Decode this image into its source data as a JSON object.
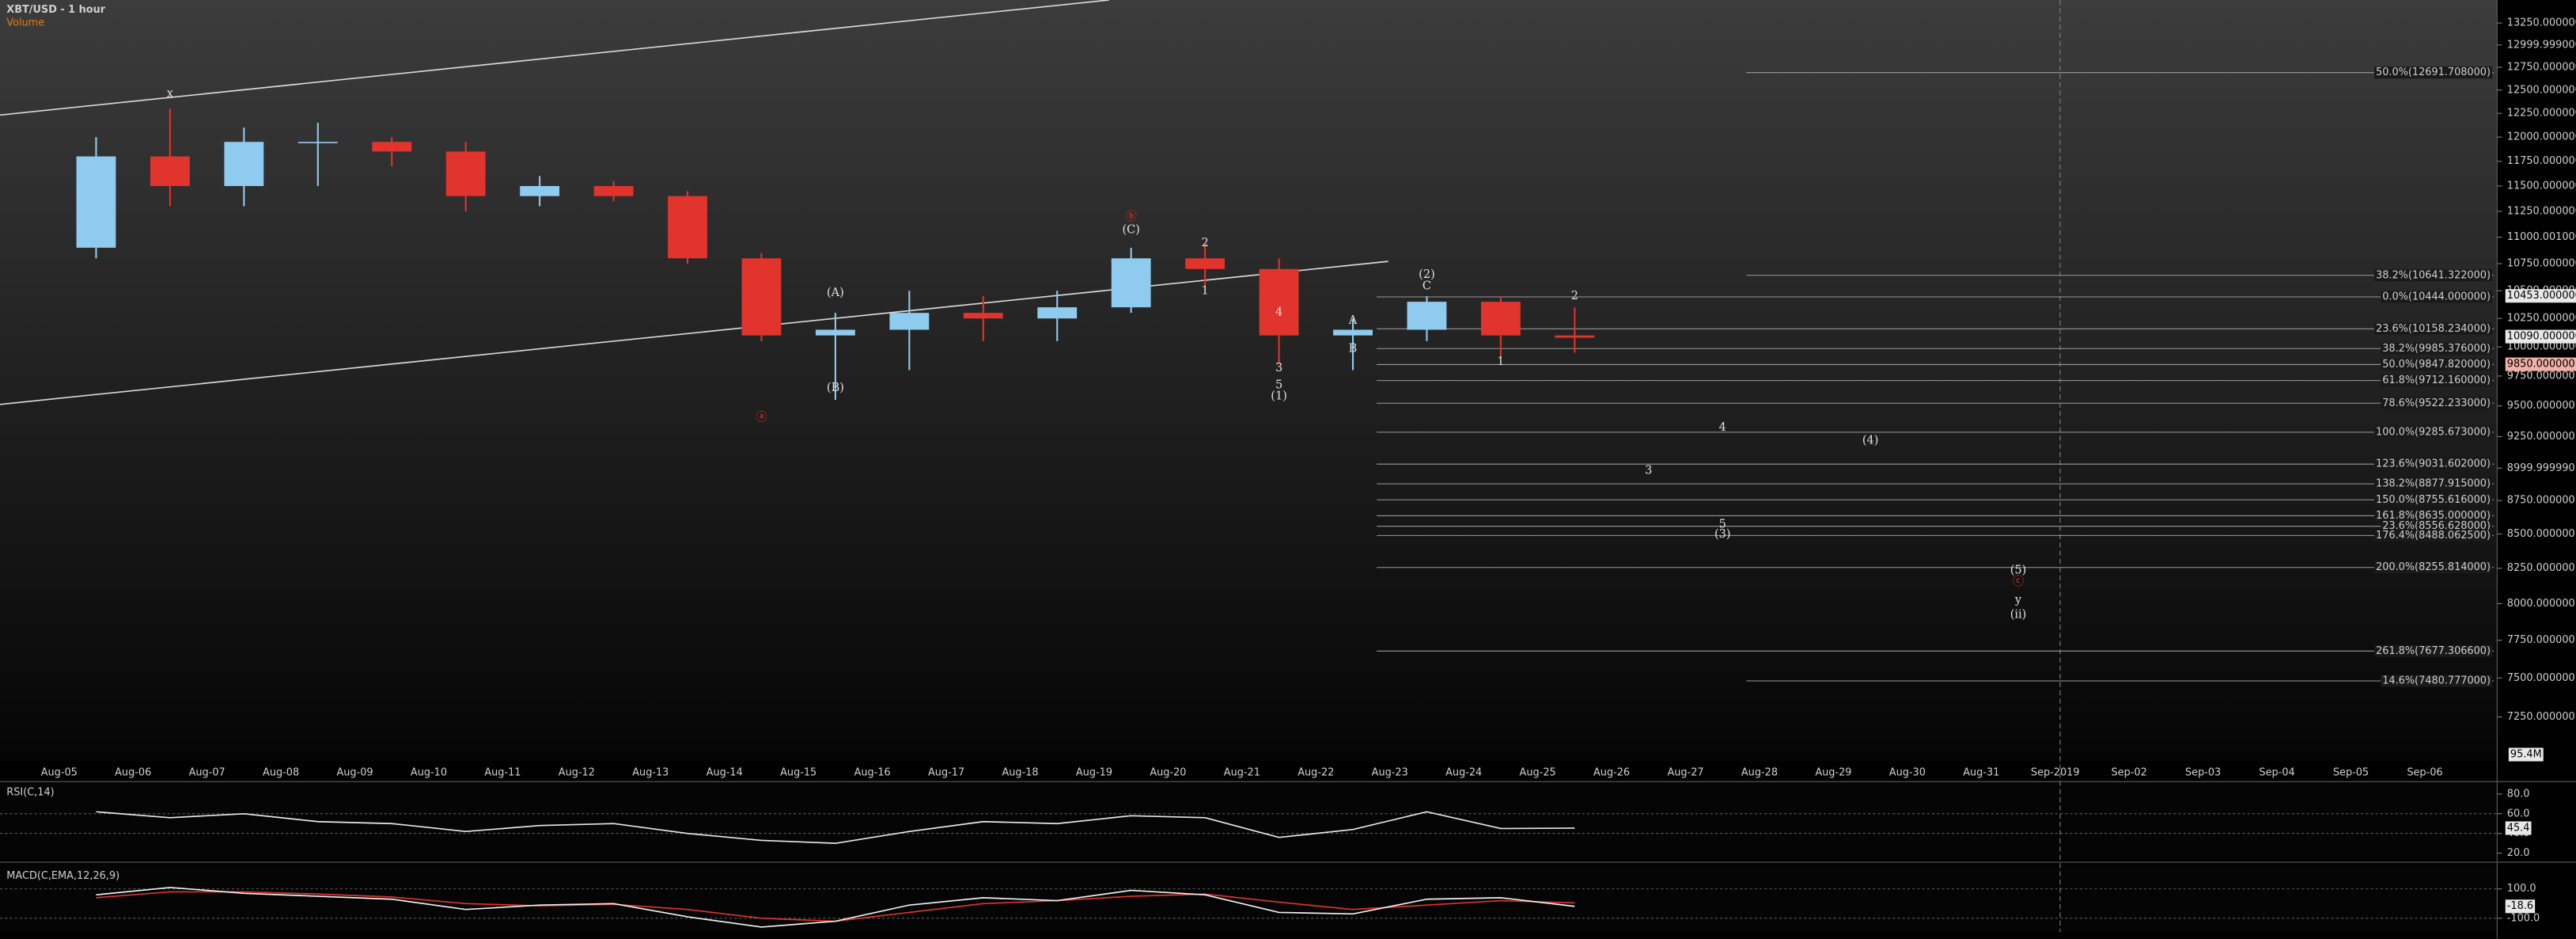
{
  "chart_data": {
    "type": "candlestick",
    "title": "XBT/USD - 1 hour",
    "subtitle": "Volume",
    "log_scale": true,
    "up_color": "#8ecbee",
    "down_color": "#e0342c",
    "x_labels": [
      "Aug-05",
      "Aug-06",
      "Aug-07",
      "Aug-08",
      "Aug-09",
      "Aug-10",
      "Aug-11",
      "Aug-12",
      "Aug-13",
      "Aug-14",
      "Aug-15",
      "Aug-16",
      "Aug-17",
      "Aug-18",
      "Aug-19",
      "Aug-20",
      "Aug-21",
      "Aug-22",
      "Aug-23",
      "Aug-24",
      "Aug-25",
      "Aug-26",
      "Aug-27",
      "Aug-28",
      "Aug-29",
      "Aug-30",
      "Aug-31",
      "Sep-2019",
      "Sep-02",
      "Sep-03",
      "Sep-04",
      "Sep-05",
      "Sep-06"
    ],
    "ylim": [
      6977,
      13518
    ],
    "yticks": [
      {
        "value": 7250,
        "label": "7250.000000"
      },
      {
        "value": 7500,
        "label": "7500.000000"
      },
      {
        "value": 7750,
        "label": "7750.000000"
      },
      {
        "value": 8000,
        "label": "8000.000000"
      },
      {
        "value": 8250,
        "label": "8250.000000"
      },
      {
        "value": 8500,
        "label": "8500.000000"
      },
      {
        "value": 8750,
        "label": "8750.000000"
      },
      {
        "value": 9000,
        "label": "8999.999990"
      },
      {
        "value": 9250,
        "label": "9250.000000"
      },
      {
        "value": 9500,
        "label": "9500.000000"
      },
      {
        "value": 9750,
        "label": "9750.000000"
      },
      {
        "value": 10000,
        "label": "10000.000000"
      },
      {
        "value": 10250,
        "label": "10250.000000"
      },
      {
        "value": 10500,
        "label": "10500.000000"
      },
      {
        "value": 10750,
        "label": "10750.000000"
      },
      {
        "value": 11000,
        "label": "11000.001000"
      },
      {
        "value": 11250,
        "label": "11250.000000"
      },
      {
        "value": 11500,
        "label": "11500.000000"
      },
      {
        "value": 11750,
        "label": "11750.000000"
      },
      {
        "value": 12000,
        "label": "12000.000000"
      },
      {
        "value": 12250,
        "label": "12250.000000"
      },
      {
        "value": 12500,
        "label": "12500.000000"
      },
      {
        "value": 12750,
        "label": "12750.000000"
      },
      {
        "value": 13000,
        "label": "12999.999000"
      },
      {
        "value": 13250,
        "label": "13250.000000"
      }
    ],
    "x": [
      "Aug-05",
      "Aug-06",
      "Aug-07",
      "Aug-08",
      "Aug-09",
      "Aug-10",
      "Aug-11",
      "Aug-12",
      "Aug-13",
      "Aug-14",
      "Aug-15",
      "Aug-16",
      "Aug-17",
      "Aug-18",
      "Aug-19",
      "Aug-20",
      "Aug-21",
      "Aug-22",
      "Aug-23",
      "Aug-24",
      "Aug-25"
    ],
    "open": [
      10900,
      11800,
      11500,
      11950,
      11950,
      11850,
      11400,
      11500,
      11400,
      10800,
      10100,
      10150,
      10300,
      10250,
      10350,
      10800,
      10700,
      10100,
      10150,
      10400,
      10100
    ],
    "high": [
      12000,
      12300,
      12100,
      12150,
      12000,
      11950,
      11600,
      11550,
      11450,
      10850,
      10300,
      10500,
      10450,
      10500,
      10900,
      10950,
      10800,
      10250,
      10450,
      10450,
      10350
    ],
    "low": [
      10800,
      11300,
      11300,
      11500,
      11700,
      11250,
      11300,
      11350,
      10750,
      10050,
      9550,
      9800,
      10050,
      10050,
      10300,
      10550,
      9850,
      9800,
      10050,
      9900,
      9950
    ],
    "close": [
      11800,
      11500,
      11950,
      11950,
      11850,
      11400,
      11500,
      11400,
      10800,
      10100,
      10150,
      10300,
      10250,
      10350,
      10800,
      10700,
      10100,
      10150,
      10400,
      10100,
      10080
    ],
    "fib_extension": {
      "start": "Aug-28",
      "levels": [
        {
          "value": 12691.708,
          "label": "50.0%(12691.708000)"
        },
        {
          "value": 10641.322,
          "label": "38.2%(10641.322000)"
        },
        {
          "value": 7480.777,
          "label": "14.6%(7480.777000)"
        }
      ]
    },
    "fib_retracement": {
      "start": "Aug-23",
      "levels": [
        {
          "value": 10444,
          "label": "0.0%(10444.000000)"
        },
        {
          "value": 10158.234,
          "label": "23.6%(10158.234000)"
        },
        {
          "value": 9985.376,
          "label": "38.2%(9985.376000)"
        },
        {
          "value": 9847.82,
          "label": "50.0%(9847.820000)"
        },
        {
          "value": 9712.16,
          "label": "61.8%(9712.160000)"
        },
        {
          "value": 9522.233,
          "label": "78.6%(9522.233000)"
        },
        {
          "value": 9285.673,
          "label": "100.0%(9285.673000)"
        },
        {
          "value": 9031.602,
          "label": "123.6%(9031.602000)"
        },
        {
          "value": 8877.915,
          "label": "138.2%(8877.915000)"
        },
        {
          "value": 8755.616,
          "label": "150.0%(8755.616000)"
        },
        {
          "value": 8635,
          "label": "161.8%(8635.000000)"
        },
        {
          "value": 8556.628,
          "label": "23.6%(8556.628000)"
        },
        {
          "value": 8488.0625,
          "label": "176.4%(8488.062500)"
        },
        {
          "value": 8255.814,
          "label": "200.0%(8255.814000)"
        },
        {
          "value": 7677.3066,
          "label": "261.8%(7677.306600)"
        }
      ]
    },
    "price_markers": [
      {
        "value": 10453,
        "label": "10453.000000",
        "color": "#e8e8e8"
      },
      {
        "value": 10090,
        "label": "10090.000000",
        "color": "#e8e8e8"
      },
      {
        "value": 9850,
        "label": "9850.000000",
        "color": "#f0b0a8"
      }
    ],
    "annotations": [
      {
        "text": "x",
        "x": "Aug-06",
        "price": 12460,
        "color": "#e0e0e0"
      },
      {
        "text": "ⓐ",
        "x": "Aug-14",
        "price": 9405,
        "color": "#e0342c"
      },
      {
        "text": "(A)",
        "x": "Aug-15",
        "price": 10480,
        "color": "#e0e0e0"
      },
      {
        "text": "(B)",
        "x": "Aug-15",
        "price": 9650,
        "color": "#e0e0e0"
      },
      {
        "text": "ⓑ",
        "x": "Aug-19",
        "price": 11195,
        "color": "#e0342c"
      },
      {
        "text": "(C)",
        "x": "Aug-19",
        "price": 11068,
        "color": "#e0e0e0"
      },
      {
        "text": "2",
        "x": "Aug-20",
        "price": 10946,
        "color": "#e0e0e0"
      },
      {
        "text": "1",
        "x": "Aug-20",
        "price": 10497,
        "color": "#e0e0e0"
      },
      {
        "text": "3",
        "x": "Aug-21",
        "price": 9816,
        "color": "#e0e0e0"
      },
      {
        "text": "4",
        "x": "Aug-21",
        "price": 10305,
        "color": "#e0e0e0"
      },
      {
        "text": "5",
        "x": "Aug-21",
        "price": 9674,
        "color": "#e0e0e0"
      },
      {
        "text": "(1)",
        "x": "Aug-21",
        "price": 9579,
        "color": "#e0e0e0"
      },
      {
        "text": "A",
        "x": "Aug-22",
        "price": 10231,
        "color": "#e0e0e0"
      },
      {
        "text": "B",
        "x": "Aug-22",
        "price": 9985,
        "color": "#e0e0e0"
      },
      {
        "text": "(2)",
        "x": "Aug-23",
        "price": 10648,
        "color": "#e0e0e0"
      },
      {
        "text": "C",
        "x": "Aug-23",
        "price": 10543,
        "color": "#e0e0e0"
      },
      {
        "text": "1",
        "x": "Aug-24",
        "price": 9872,
        "color": "#e0e0e0"
      },
      {
        "text": "2",
        "x": "Aug-25",
        "price": 10450,
        "color": "#e0e0e0"
      },
      {
        "text": "3",
        "x": "Aug-26",
        "price": 8980,
        "color": "#e0e0e0"
      },
      {
        "text": "4",
        "x": "Aug-27",
        "price": 9324,
        "color": "#e0e0e0"
      },
      {
        "text": "5",
        "x": "Aug-27",
        "price": 8570,
        "color": "#e0e0e0"
      },
      {
        "text": "(3)",
        "x": "Aug-27",
        "price": 8497,
        "color": "#e0e0e0"
      },
      {
        "text": "(4)",
        "x": "Aug-29",
        "price": 9218,
        "color": "#e0e0e0"
      },
      {
        "text": "(5)",
        "x": "Aug-31",
        "price": 8234,
        "color": "#e0e0e0"
      },
      {
        "text": "ⓒ",
        "x": "Aug-31",
        "price": 8153,
        "color": "#e0342c"
      },
      {
        "text": "y",
        "x": "Aug-31",
        "price": 8025,
        "color": "#e0e0e0"
      },
      {
        "text": "(ii)",
        "x": "Aug-31",
        "price": 7922,
        "color": "#e0e0e0"
      }
    ],
    "volume_marker": "95.4M",
    "rsi": {
      "title": "RSI(C,14)",
      "ylim": [
        13.3,
        91.7
      ],
      "yticks": [
        {
          "value": 80,
          "label": "80.0"
        },
        {
          "value": 60,
          "label": "60.0"
        },
        {
          "value": 40,
          "label": "40.0"
        },
        {
          "value": 20,
          "label": "20.0"
        }
      ],
      "values": [
        62,
        56,
        60,
        52,
        50,
        42,
        48,
        50,
        40,
        33,
        30,
        42,
        52,
        50,
        58,
        56,
        36,
        44,
        62,
        45,
        45.4
      ],
      "color": "#e8e8e8"
    },
    "macd": {
      "title": "MACD(C,EMA,12,26,9)",
      "ylim": [
        -194,
        265
      ],
      "yticks": [
        {
          "value": 100,
          "label": "100.0"
        },
        {
          "value": -100,
          "label": "-100.0"
        }
      ],
      "values": [
        60,
        110,
        70,
        50,
        30,
        -40,
        -10,
        0,
        -90,
        -160,
        -120,
        -10,
        40,
        20,
        90,
        60,
        -60,
        -70,
        30,
        40,
        -18.6
      ],
      "signal": [
        40,
        80,
        80,
        65,
        45,
        0,
        -15,
        -5,
        -40,
        -100,
        -120,
        -60,
        0,
        20,
        50,
        65,
        10,
        -40,
        -10,
        20,
        5
      ],
      "color": "#f0f0f0",
      "signal_color": "#e0342c"
    }
  }
}
